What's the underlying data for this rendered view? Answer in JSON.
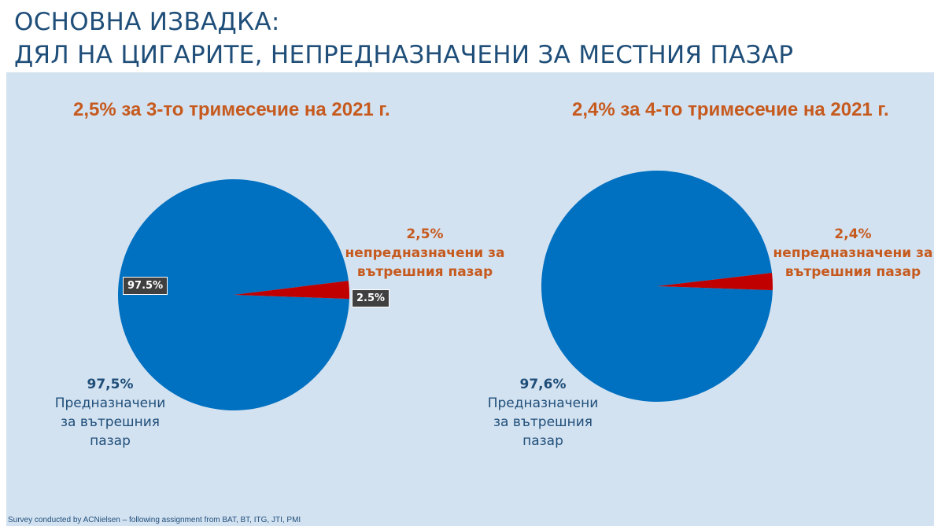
{
  "header": {
    "line1": "ОСНОВНА ИЗВАДКА:",
    "line2": "ДЯЛ НА ЦИГАРИТЕ, НЕПРЕДНАЗНАЧЕНИ ЗА МЕСТНИЯ ПАЗАР"
  },
  "footer": "Survey conducted by ACNielsen – following assignment from BAT, BT, ITG, JTI, PMI",
  "colors": {
    "domestic": "#0070c0",
    "non_domestic": "#c00000",
    "accent_text": "#c65a1e",
    "panel": "#d3e2f1"
  },
  "chart_data": [
    {
      "type": "pie",
      "title": "2,5% за 3-то тримесечие на 2021 г.",
      "slices": [
        {
          "label": "Предназначени за вътрешния пазар",
          "value": 97.5,
          "label_pct": "97,5%",
          "tag": "97.5%"
        },
        {
          "label": "непредназначени за вътрешния пазар",
          "value": 2.5,
          "label_pct": "2,5%",
          "tag": "2.5%"
        }
      ],
      "domestic_label": {
        "pct": "97,5%",
        "l1": "Предназначени",
        "l2": "за вътрешния",
        "l3": "пазар"
      },
      "other_label": {
        "pct": "2,5%",
        "l1": "непредназначени за",
        "l2": "вътрешния пазар"
      }
    },
    {
      "type": "pie",
      "title": "2,4% за 4-то тримесечие на 2021 г.",
      "slices": [
        {
          "label": "Предназначени за вътрешния пазар",
          "value": 97.6,
          "label_pct": "97,6%"
        },
        {
          "label": "непредназначени за вътрешния пазар",
          "value": 2.4,
          "label_pct": "2,4%"
        }
      ],
      "domestic_label": {
        "pct": "97,6%",
        "l1": "Предназначени",
        "l2": "за вътрешния",
        "l3": "пазар"
      },
      "other_label": {
        "pct": "2,4%",
        "l1": "непредназначени за",
        "l2": "вътрешния пазар"
      }
    }
  ]
}
